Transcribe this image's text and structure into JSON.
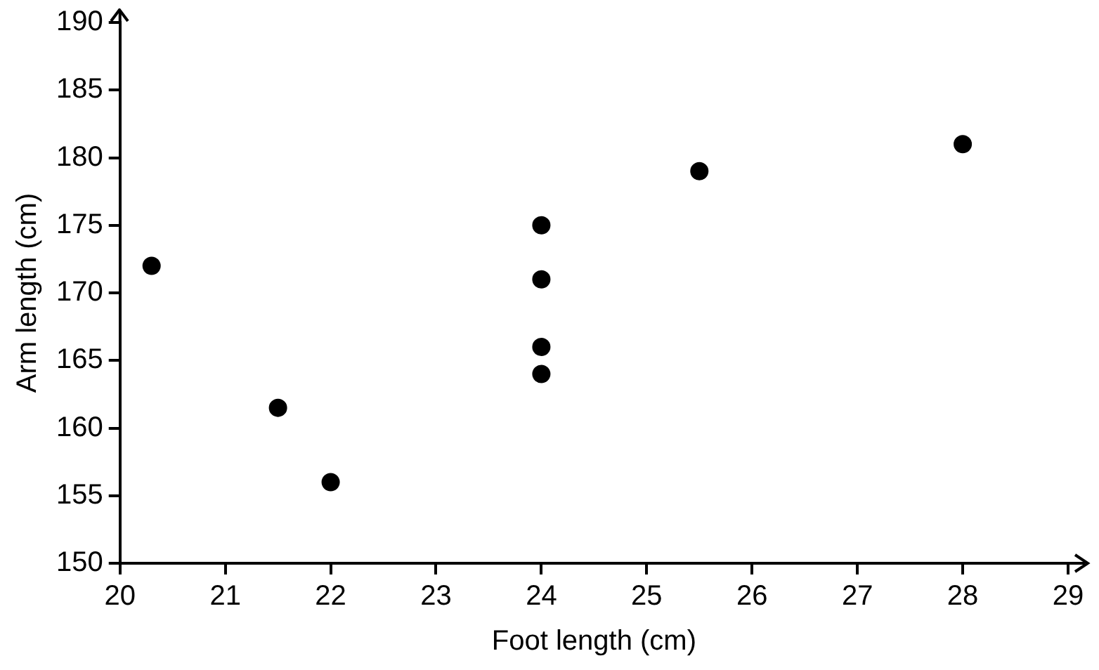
{
  "chart_data": {
    "type": "scatter",
    "xlabel": "Foot length (cm)",
    "ylabel": "Arm length (cm)",
    "x": [
      20.3,
      21.5,
      22,
      24,
      24,
      24,
      24,
      25.5,
      28
    ],
    "values": [
      172,
      161.5,
      156,
      175,
      171,
      166,
      164,
      179,
      181
    ],
    "color": "#000000",
    "marker": "circle",
    "xlim": [
      20,
      29
    ],
    "xticks": [
      20,
      21,
      22,
      23,
      24,
      25,
      26,
      27,
      28,
      29
    ],
    "ylim": [
      150,
      190
    ],
    "yticks": [
      150,
      155,
      160,
      165,
      170,
      175,
      180,
      185,
      190
    ],
    "grid": false,
    "legend": false
  }
}
